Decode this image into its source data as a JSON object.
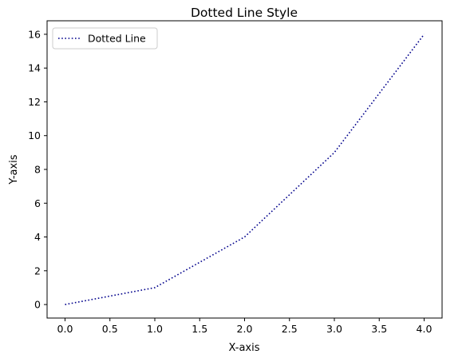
{
  "chart_data": {
    "type": "line",
    "title": "Dotted Line Style",
    "xlabel": "X-axis",
    "ylabel": "Y-axis",
    "xlim": [
      -0.2,
      4.2
    ],
    "ylim": [
      -0.8,
      16.8
    ],
    "x_ticks": [
      0.0,
      0.5,
      1.0,
      1.5,
      2.0,
      2.5,
      3.0,
      3.5,
      4.0
    ],
    "x_tick_labels": [
      "0.0",
      "0.5",
      "1.0",
      "1.5",
      "2.0",
      "2.5",
      "3.0",
      "3.5",
      "4.0"
    ],
    "y_ticks": [
      0,
      2,
      4,
      6,
      8,
      10,
      12,
      14,
      16
    ],
    "y_tick_labels": [
      "0",
      "2",
      "4",
      "6",
      "8",
      "10",
      "12",
      "14",
      "16"
    ],
    "grid": false,
    "legend_position": "top-left",
    "series": [
      {
        "name": "Dotted Line",
        "x": [
          0,
          1,
          2,
          3,
          4
        ],
        "values": [
          0,
          1,
          4,
          9,
          16
        ],
        "color": "#00008b",
        "line_style": "dotted"
      }
    ]
  }
}
